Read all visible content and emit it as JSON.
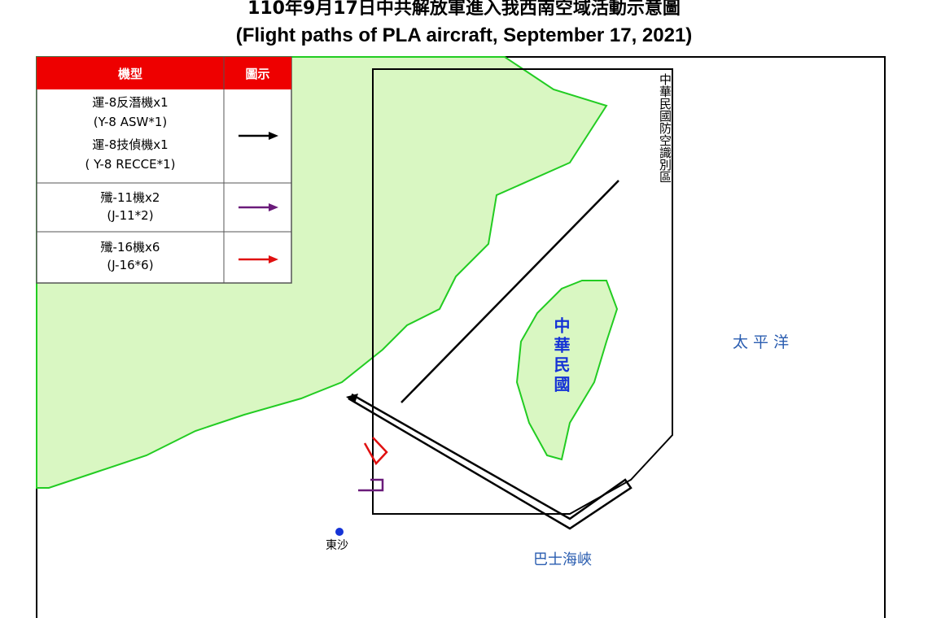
{
  "header": {
    "title_zh": "110年9月17日中共解放軍進入我西南空域活動示意圖",
    "title_en": "(Flight paths of PLA aircraft, September 17, 2021)"
  },
  "legend": {
    "headers": [
      "機型",
      "圖示"
    ],
    "rows": [
      {
        "lines": [
          "運-8反潛機x1",
          "(Y-8 ASW*1)",
          "運-8技偵機x1",
          "( Y-8 RECCE*1)"
        ],
        "color": "#000000"
      },
      {
        "lines": [
          "殲-11機x2",
          "(J-11*2)"
        ],
        "color": "#6a1b7a"
      },
      {
        "lines": [
          "殲-16機x6",
          "(J-16*6)"
        ],
        "color": "#e01010"
      }
    ]
  },
  "map_labels": {
    "adiz": "中華民國防空識別區",
    "taiwan": "中華民國",
    "pacific": "太 平 洋",
    "bashi": "巴士海峽",
    "pratas": "東沙"
  }
}
